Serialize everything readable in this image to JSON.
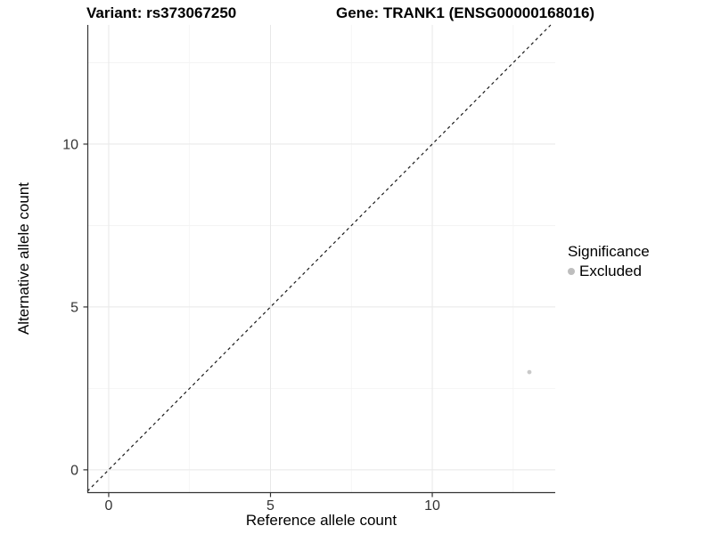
{
  "chart_data": {
    "type": "scatter",
    "titles": {
      "variant": "Variant: rs373067250",
      "gene": "Gene: TRANK1 (ENSG00000168016)"
    },
    "xlabel": "Reference allele count",
    "ylabel": "Alternative allele count",
    "xlim": [
      -0.66,
      13.8
    ],
    "ylim": [
      -0.7,
      13.66
    ],
    "x_ticks": [
      {
        "value": 0,
        "label": "0"
      },
      {
        "value": 5,
        "label": "5"
      },
      {
        "value": 10,
        "label": "10"
      }
    ],
    "y_ticks": [
      {
        "value": 0,
        "label": "0"
      },
      {
        "value": 5,
        "label": "5"
      },
      {
        "value": 10,
        "label": "10"
      }
    ],
    "x_minor_gridlines": [
      2.5,
      7.5,
      12.5
    ],
    "y_minor_gridlines": [
      2.5,
      7.5,
      12.5
    ],
    "grid": "on",
    "identity_line": {
      "slope": 1,
      "intercept": 0,
      "style": "dashed",
      "color": "#1a1a1a"
    },
    "series": [
      {
        "name": "Excluded",
        "color": "#c9c9c9",
        "points": [
          {
            "x": 13,
            "y": 3
          }
        ]
      }
    ],
    "legend": {
      "title": "Significance",
      "position": "right",
      "items": [
        {
          "label": "Excluded",
          "color": "#bebebe"
        }
      ]
    },
    "colors": {
      "background": "#ffffff",
      "grid_major": "#e8e8e8",
      "grid_minor": "#f3f3f3",
      "axis_line": "#333333",
      "tick_label": "#333333",
      "point": "#c9c9c9"
    }
  }
}
